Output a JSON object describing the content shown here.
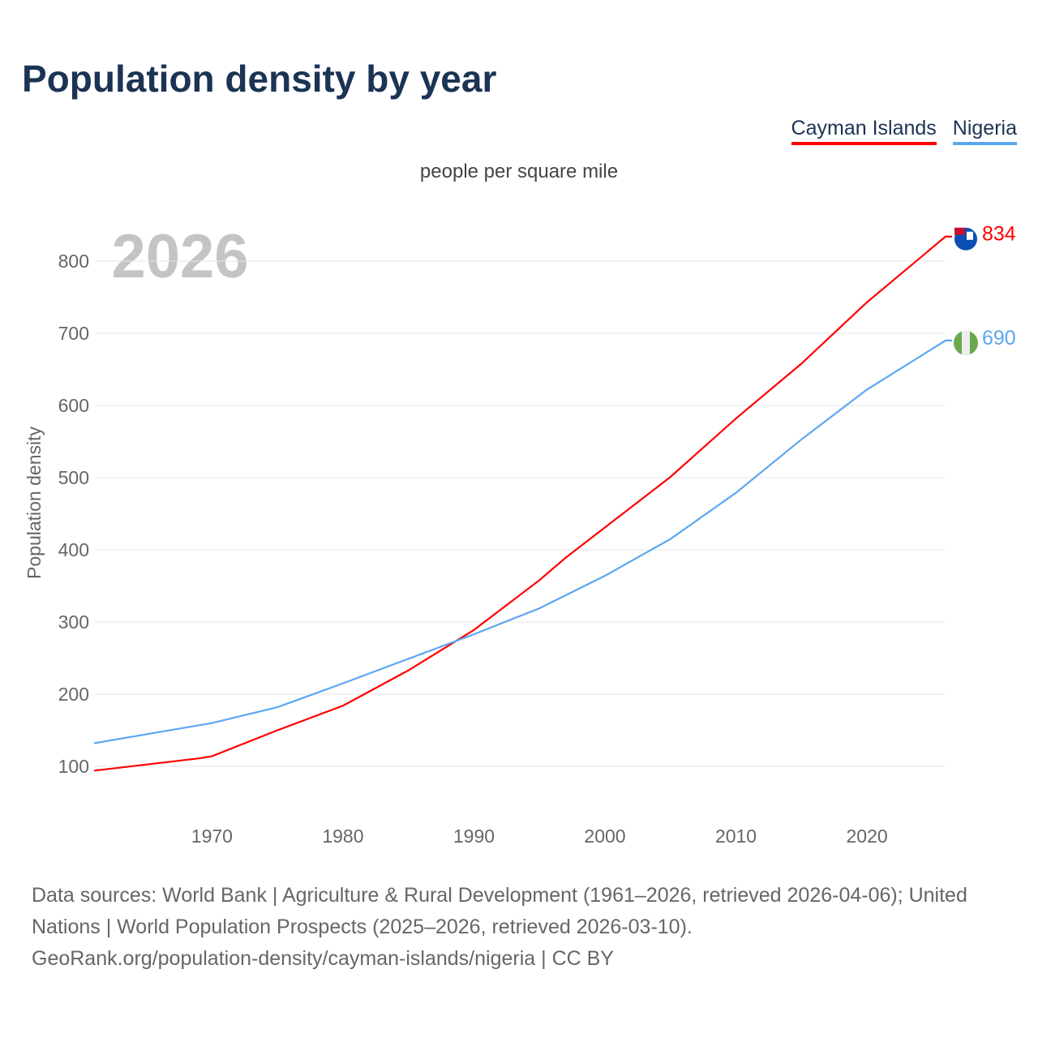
{
  "title": "Population density by year",
  "subtitle": "people per square mile",
  "footer": {
    "line1": "Data sources: World Bank | Agriculture & Rural Development (1961–2026, retrieved 2026-04-06); United Nations | World Population Prospects (2025–2026, retrieved 2026-03-10).",
    "line2": "GeoRank.org/population-density/cayman-islands/nigeria | CC BY"
  },
  "chart_data": {
    "type": "line",
    "title": "Population density by year",
    "ylabel": "Population density",
    "xlabel": "",
    "year_label": "2026",
    "xlim": [
      1961,
      2026
    ],
    "ylim": [
      100,
      800
    ],
    "xticks": [
      1970,
      1980,
      1990,
      2000,
      2010,
      2020
    ],
    "yticks": [
      100,
      200,
      300,
      400,
      500,
      600,
      700,
      800
    ],
    "grid": true,
    "legend": "top-right",
    "series": [
      {
        "name": "Cayman Islands",
        "color": "#ff0000",
        "end_label": "834",
        "flag": "cayman-islands-flag",
        "x": [
          1961,
          1969,
          1970,
          1975,
          1980,
          1985,
          1990,
          1995,
          1997,
          2000,
          2005,
          2010,
          2015,
          2020,
          2026
        ],
        "y": [
          94,
          111,
          114,
          150,
          184,
          233,
          289,
          358,
          389,
          431,
          501,
          582,
          658,
          743,
          834
        ]
      },
      {
        "name": "Nigeria",
        "color": "#5aa7f0",
        "end_label": "690",
        "flag": "nigeria-flag",
        "x": [
          1961,
          1970,
          1975,
          1980,
          1985,
          1990,
          1995,
          2000,
          2005,
          2010,
          2015,
          2020,
          2026
        ],
        "y": [
          132,
          160,
          182,
          215,
          249,
          283,
          319,
          364,
          415,
          479,
          553,
          622,
          690
        ]
      }
    ]
  }
}
